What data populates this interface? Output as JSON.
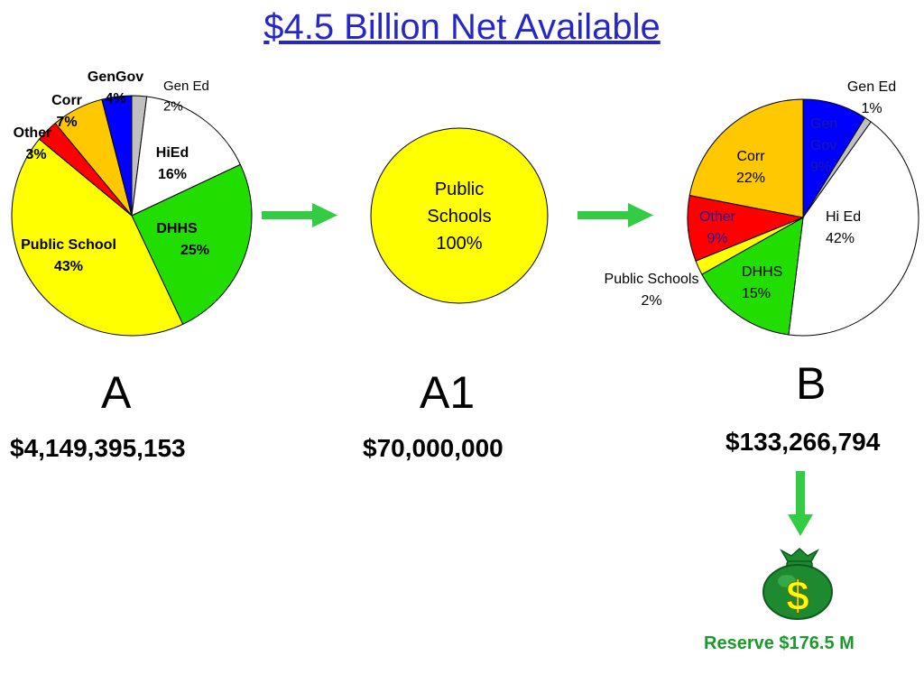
{
  "title": "$4.5 Billion Net Available",
  "chart_data": [
    {
      "type": "pie",
      "id": "A",
      "slices": [
        {
          "label": "Gen Ed",
          "value": 2,
          "pct_label": "2%",
          "color": "#c0c0c0"
        },
        {
          "label": "HiEd",
          "value": 16,
          "pct_label": "16%",
          "color": "#ffffff"
        },
        {
          "label": "DHHS",
          "value": 25,
          "pct_label": "25%",
          "color": "#22dd00"
        },
        {
          "label": "Public School",
          "value": 43,
          "pct_label": "43%",
          "color": "#ffff00"
        },
        {
          "label": "Other",
          "value": 3,
          "pct_label": "3%",
          "color": "#ff0000"
        },
        {
          "label": "Corr",
          "value": 7,
          "pct_label": "7%",
          "color": "#ffc800"
        },
        {
          "label": "GenGov",
          "value": 4,
          "pct_label": "4%",
          "color": "#0000ff"
        }
      ]
    },
    {
      "type": "pie",
      "id": "A1",
      "slices": [
        {
          "label": "Public Schools",
          "value": 100,
          "pct_label": "100%",
          "color": "#ffff00"
        }
      ]
    },
    {
      "type": "pie",
      "id": "B",
      "slices": [
        {
          "label": "Gen Gov",
          "value": 9,
          "pct_label": "9%",
          "color": "#0000ff"
        },
        {
          "label": "Gen Ed",
          "value": 1,
          "pct_label": "1%",
          "color": "#c0c0c0"
        },
        {
          "label": "Hi Ed",
          "value": 42,
          "pct_label": "42%",
          "color": "#ffffff"
        },
        {
          "label": "DHHS",
          "value": 15,
          "pct_label": "15%",
          "color": "#22dd00"
        },
        {
          "label": "Public Schools",
          "value": 2,
          "pct_label": "2%",
          "color": "#ffff00"
        },
        {
          "label": "Other",
          "value": 9,
          "pct_label": "9%",
          "color": "#ff0000"
        },
        {
          "label": "Corr",
          "value": 22,
          "pct_label": "22%",
          "color": "#ffc800"
        }
      ]
    }
  ],
  "sections": {
    "a": {
      "letter": "A",
      "amount": "$4,149,395,153"
    },
    "a1": {
      "letter": "A1",
      "amount": "$70,000,000"
    },
    "b": {
      "letter": "B",
      "amount": "$133,266,794"
    }
  },
  "reserve": {
    "label": "Reserve $176.5 M",
    "icon": "money-bag-icon",
    "symbol": "$"
  },
  "colors": {
    "arrow": "#33cc44",
    "title": "#2727c8",
    "reserve_text": "#1a9a2a"
  }
}
